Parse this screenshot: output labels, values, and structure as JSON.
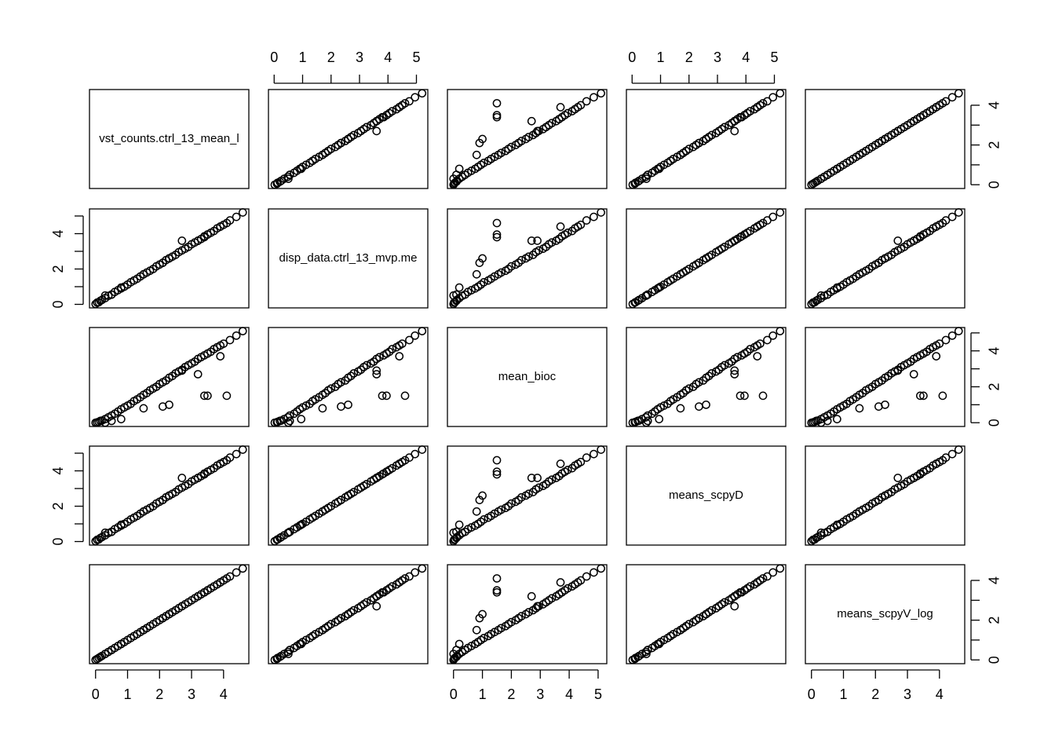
{
  "chart_data": {
    "type": "scatter-matrix",
    "point_color": "#000000",
    "variables": [
      {
        "name": "vst_counts.ctrl_13_mean_l",
        "lim": [
          -0.19,
          4.79
        ],
        "xticks": [
          0,
          1,
          2,
          3,
          4
        ],
        "yticks": [
          0,
          2,
          4
        ],
        "yminorticks": [
          1,
          3
        ],
        "values": [
          0,
          0.05,
          0.1,
          0.15,
          0.2,
          0.3,
          0.4,
          0.5,
          0.6,
          0.7,
          0.8,
          0.9,
          1.0,
          1.1,
          1.2,
          1.3,
          1.4,
          1.5,
          1.6,
          1.7,
          1.8,
          1.9,
          2.0,
          2.1,
          2.2,
          2.3,
          2.4,
          2.5,
          2.6,
          2.7,
          2.8,
          2.9,
          3.0,
          3.1,
          3.2,
          3.3,
          3.4,
          3.5,
          3.6,
          3.7,
          3.8,
          3.9,
          4.0,
          4.2,
          4.4,
          4.6,
          3.9,
          3.5,
          4.1,
          3.4,
          2.3,
          2.1,
          3.2,
          0.8,
          1.5,
          0.3,
          0.5,
          2.7
        ]
      },
      {
        "name": "disp_data.ctrl_13_mvp.me",
        "lim": [
          -0.2,
          5.4
        ],
        "xticks": [
          0,
          1,
          2,
          3,
          4,
          5
        ],
        "yticks": [
          0,
          2,
          4
        ],
        "yminorticks": [
          1,
          3,
          5
        ],
        "values": [
          0.02,
          0.1,
          0.12,
          0.2,
          0.25,
          0.35,
          0.48,
          0.55,
          0.7,
          0.8,
          0.9,
          1.0,
          1.12,
          1.25,
          1.35,
          1.45,
          1.58,
          1.7,
          1.8,
          1.9,
          2.0,
          2.15,
          2.25,
          2.35,
          2.5,
          2.6,
          2.7,
          2.8,
          2.95,
          3.05,
          3.15,
          3.25,
          3.4,
          3.5,
          3.6,
          3.7,
          3.85,
          3.95,
          4.05,
          4.15,
          4.3,
          4.4,
          4.5,
          4.75,
          4.95,
          5.2,
          4.4,
          3.95,
          4.6,
          3.8,
          2.6,
          2.35,
          3.6,
          0.95,
          1.7,
          0.5,
          0.55,
          3.6
        ]
      },
      {
        "name": "mean_bioc",
        "lim": [
          -0.21,
          5.3
        ],
        "xticks": [
          0,
          1,
          2,
          3,
          4,
          5
        ],
        "yticks": [
          0,
          2,
          4
        ],
        "yminorticks": [
          1,
          3,
          5
        ],
        "values": [
          0.0,
          0.02,
          0.05,
          0.1,
          0.12,
          0.2,
          0.3,
          0.4,
          0.5,
          0.62,
          0.75,
          0.85,
          0.95,
          1.05,
          1.2,
          1.3,
          1.42,
          1.55,
          1.65,
          1.8,
          1.9,
          2.0,
          2.15,
          2.25,
          2.35,
          2.5,
          2.6,
          2.75,
          2.85,
          2.95,
          3.1,
          3.2,
          3.3,
          3.4,
          3.55,
          3.65,
          3.75,
          3.85,
          3.95,
          4.1,
          4.2,
          4.3,
          4.4,
          4.6,
          4.85,
          5.1,
          3.7,
          1.5,
          1.5,
          1.5,
          1.0,
          0.9,
          2.7,
          0.2,
          0.8,
          0.0,
          0.1,
          2.9
        ]
      },
      {
        "name": "means_scpyD",
        "lim": [
          -0.2,
          5.4
        ],
        "xticks": [
          0,
          1,
          2,
          3,
          4,
          5
        ],
        "yticks": [
          0,
          2,
          4
        ],
        "yminorticks": [
          1,
          3,
          5
        ],
        "values": [
          0.02,
          0.1,
          0.12,
          0.2,
          0.25,
          0.35,
          0.48,
          0.55,
          0.7,
          0.8,
          0.9,
          1.0,
          1.12,
          1.25,
          1.35,
          1.45,
          1.58,
          1.7,
          1.8,
          1.9,
          2.0,
          2.15,
          2.25,
          2.35,
          2.5,
          2.6,
          2.7,
          2.8,
          2.95,
          3.05,
          3.15,
          3.25,
          3.4,
          3.5,
          3.6,
          3.7,
          3.85,
          3.95,
          4.05,
          4.15,
          4.3,
          4.4,
          4.5,
          4.75,
          4.95,
          5.2,
          4.4,
          3.95,
          4.6,
          3.8,
          2.6,
          2.35,
          3.6,
          0.95,
          1.7,
          0.5,
          0.55,
          3.6
        ]
      },
      {
        "name": "means_scpyV_log",
        "lim": [
          -0.19,
          4.79
        ],
        "xticks": [
          0,
          1,
          2,
          3,
          4
        ],
        "yticks": [
          0,
          2,
          4
        ],
        "yminorticks": [
          1,
          3
        ],
        "values": [
          0,
          0.05,
          0.1,
          0.15,
          0.2,
          0.3,
          0.4,
          0.5,
          0.6,
          0.7,
          0.8,
          0.9,
          1.0,
          1.1,
          1.2,
          1.3,
          1.4,
          1.5,
          1.6,
          1.7,
          1.8,
          1.9,
          2.0,
          2.1,
          2.2,
          2.3,
          2.4,
          2.5,
          2.6,
          2.7,
          2.8,
          2.9,
          3.0,
          3.1,
          3.2,
          3.3,
          3.4,
          3.5,
          3.6,
          3.7,
          3.8,
          3.9,
          4.0,
          4.2,
          4.4,
          4.6,
          3.9,
          3.5,
          4.1,
          3.4,
          2.3,
          2.1,
          3.2,
          0.8,
          1.5,
          0.3,
          0.5,
          2.7
        ]
      }
    ]
  }
}
